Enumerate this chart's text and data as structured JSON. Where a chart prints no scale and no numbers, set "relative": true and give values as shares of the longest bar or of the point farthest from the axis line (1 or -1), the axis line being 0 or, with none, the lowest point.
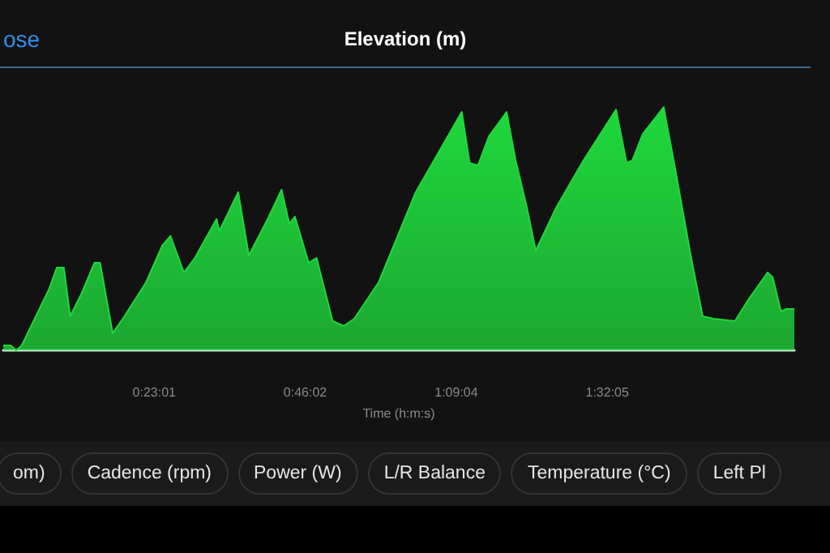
{
  "chart_data": {
    "type": "area",
    "title": "Elevation (m)",
    "xlabel": "Time (h:m:s)",
    "relative": true,
    "annotations": [
      "ose",
      "om)",
      "Cadence (rpm)",
      "Power (W)",
      "L/R Balance",
      "Temperature (°C)",
      "Left Pl"
    ],
    "xlim": [
      0,
      2.01
    ],
    "xticks": [
      {
        "value": 0.3836,
        "label": "0:23:01"
      },
      {
        "value": 0.7672,
        "label": "0:46:02"
      },
      {
        "value": 1.1511,
        "label": "1:09:04"
      },
      {
        "value": 1.5347,
        "label": "1:32:05"
      }
    ],
    "tick_labels": "x",
    "grid": false,
    "series": [
      {
        "color": "#1fd83c",
        "x": [
          0,
          0.019,
          0.033,
          0.047,
          0.074,
          0.116,
          0.136,
          0.154,
          0.17,
          0.198,
          0.232,
          0.246,
          0.278,
          0.308,
          0.363,
          0.404,
          0.425,
          0.459,
          0.487,
          0.542,
          0.549,
          0.597,
          0.624,
          0.672,
          0.707,
          0.727,
          0.741,
          0.776,
          0.796,
          0.837,
          0.865,
          0.892,
          0.954,
          1.048,
          1.165,
          1.185,
          1.206,
          1.234,
          1.279,
          1.302,
          1.33,
          1.353,
          1.406,
          1.474,
          1.557,
          1.584,
          1.598,
          1.625,
          1.678,
          1.708,
          1.749,
          1.777,
          1.804,
          1.859,
          1.894,
          1.942,
          1.955,
          1.976,
          1.99,
          2.01
        ],
        "values": [
          0.02,
          0.02,
          0,
          0.02,
          0.11,
          0.25,
          0.34,
          0.34,
          0.14,
          0.23,
          0.36,
          0.36,
          0.07,
          0.14,
          0.28,
          0.43,
          0.47,
          0.32,
          0.38,
          0.54,
          0.49,
          0.65,
          0.39,
          0.54,
          0.66,
          0.52,
          0.55,
          0.36,
          0.38,
          0.12,
          0.1,
          0.13,
          0.28,
          0.65,
          0.98,
          0.77,
          0.76,
          0.88,
          0.98,
          0.78,
          0.59,
          0.41,
          0.59,
          0.78,
          0.99,
          0.77,
          0.78,
          0.89,
          1,
          0.74,
          0.37,
          0.14,
          0.13,
          0.12,
          0.21,
          0.32,
          0.3,
          0.16,
          0.17,
          0.17
        ]
      }
    ]
  }
}
